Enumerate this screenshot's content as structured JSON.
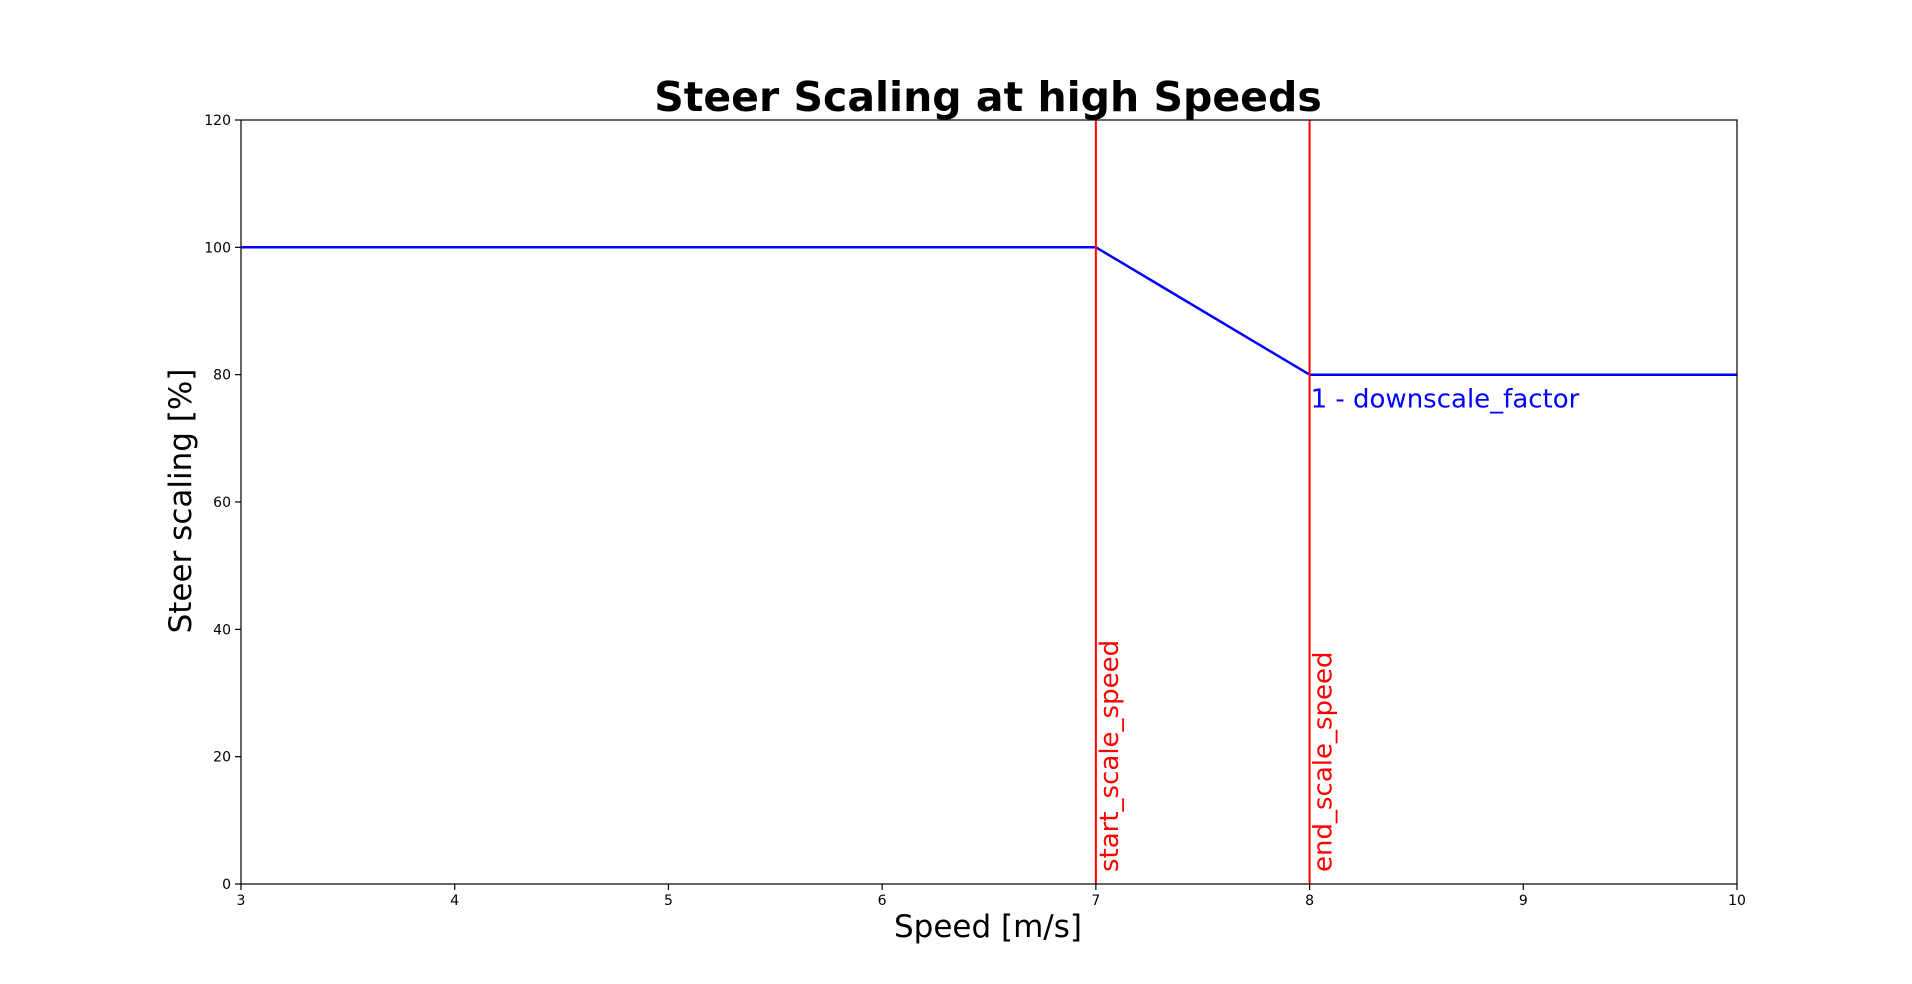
{
  "chart_data": {
    "type": "line",
    "title": "Steer Scaling at high Speeds",
    "xlabel": "Speed [m/s]",
    "ylabel": "Steer scaling [%]",
    "xlim": [
      3,
      10
    ],
    "ylim": [
      0,
      120
    ],
    "xticks": [
      3,
      4,
      5,
      6,
      7,
      8,
      9,
      10
    ],
    "yticks": [
      0,
      20,
      40,
      60,
      80,
      100,
      120
    ],
    "grid": false,
    "series": [
      {
        "color": "#0000ff",
        "x": [
          3,
          7,
          8,
          10
        ],
        "y": [
          100,
          100,
          80,
          80
        ]
      }
    ],
    "vlines": [
      {
        "x": 7,
        "label": "start_scale_speed",
        "color": "#ff0000"
      },
      {
        "x": 8,
        "label": "end_scale_speed",
        "color": "#ff0000"
      }
    ],
    "annotations": [
      {
        "text": "1 - downscale_factor",
        "x": 8,
        "y": 80,
        "color": "#0000ff"
      }
    ]
  }
}
